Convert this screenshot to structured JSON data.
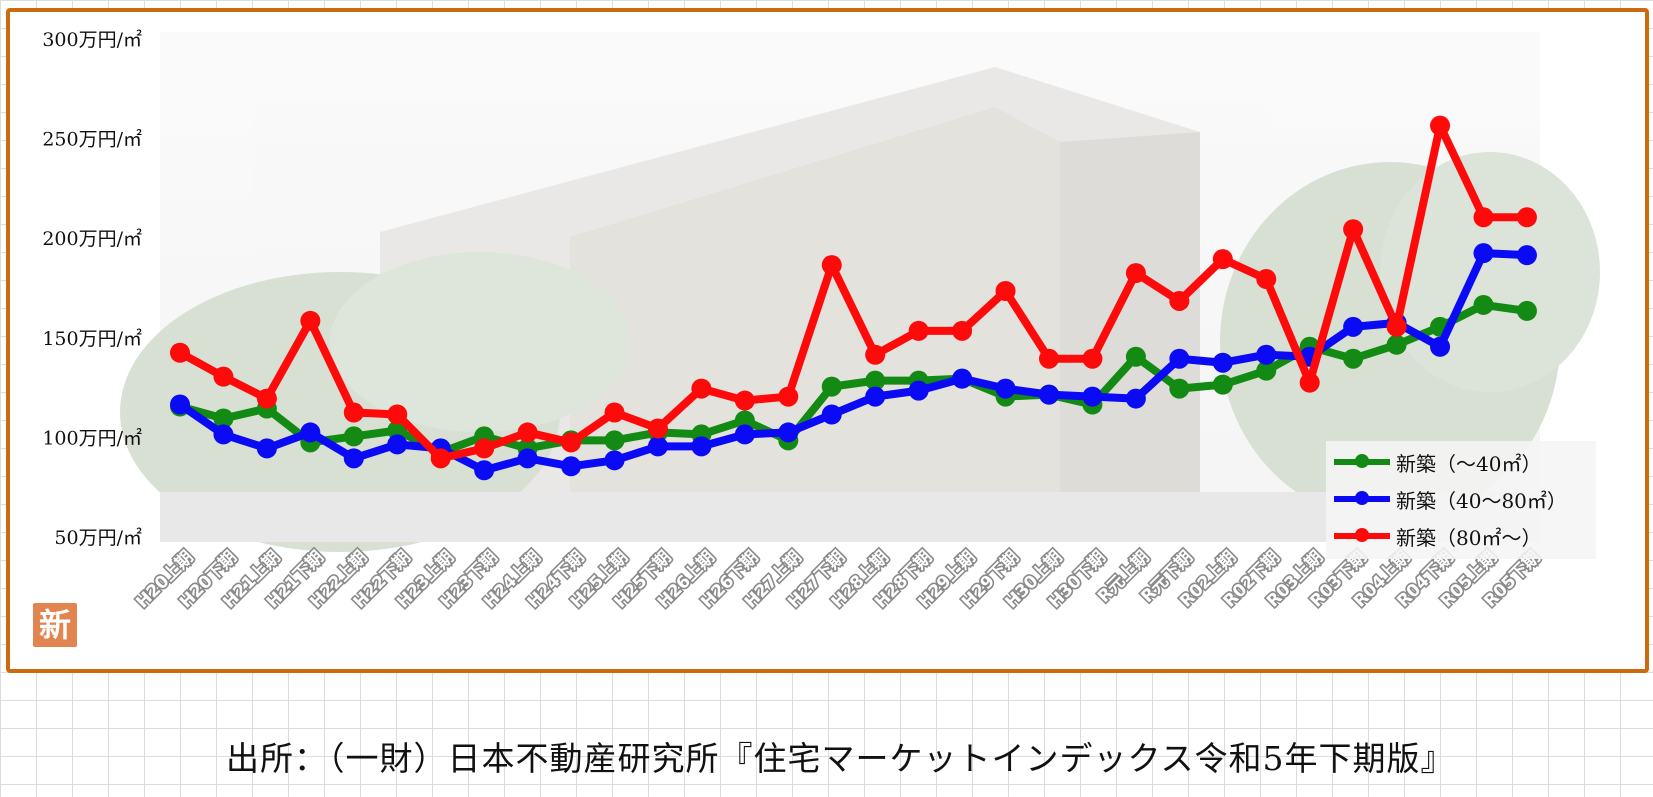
{
  "chart_data": {
    "type": "line",
    "categories": [
      "H20上期",
      "H20下期",
      "H21上期",
      "H21下期",
      "H22上期",
      "H22下期",
      "H23上期",
      "H23下期",
      "H24上期",
      "H24下期",
      "H25上期",
      "H25下期",
      "H26上期",
      "H26下期",
      "H27上期",
      "H27下期",
      "H28上期",
      "H28下期",
      "H29上期",
      "H29下期",
      "H30上期",
      "H30下期",
      "R元上期",
      "R元下期",
      "R02上期",
      "R02下期",
      "R03上期",
      "R03下期",
      "R04上期",
      "R04下期",
      "R05上期",
      "R05下期"
    ],
    "y_ticks": [
      "300万円/㎡",
      "250万円/㎡",
      "200万円/㎡",
      "150万円/㎡",
      "100万円/㎡",
      "50万円/㎡"
    ],
    "ylim": [
      50,
      300
    ],
    "series": [
      {
        "name": "新築（～40㎡）",
        "color": "#138a13",
        "values": [
          117,
          111,
          116,
          99,
          102,
          105,
          94,
          102,
          96,
          100,
          100,
          104,
          103,
          110,
          100,
          127,
          130,
          130,
          131,
          122,
          123,
          118,
          142,
          126,
          128,
          135,
          147,
          141,
          148,
          157,
          168,
          165
        ]
      },
      {
        "name": "新築（40～80㎡）",
        "color": "#0a0af5",
        "values": [
          118,
          103,
          96,
          104,
          91,
          98,
          96,
          85,
          91,
          87,
          90,
          97,
          97,
          103,
          104,
          113,
          122,
          125,
          131,
          126,
          123,
          122,
          121,
          141,
          139,
          143,
          142,
          157,
          159,
          147,
          194,
          193
        ]
      },
      {
        "name": "新築（80㎡～）",
        "color": "#ff0a0a",
        "values": [
          144,
          132,
          121,
          160,
          114,
          113,
          91,
          96,
          104,
          99,
          114,
          106,
          126,
          120,
          122,
          188,
          143,
          155,
          155,
          175,
          141,
          141,
          184,
          170,
          191,
          181,
          129,
          206,
          157,
          258,
          212,
          212
        ]
      }
    ]
  },
  "badge": "新",
  "source": "出所：（一財）日本不動産研究所『住宅マーケットインデックス令和5年下期版』"
}
